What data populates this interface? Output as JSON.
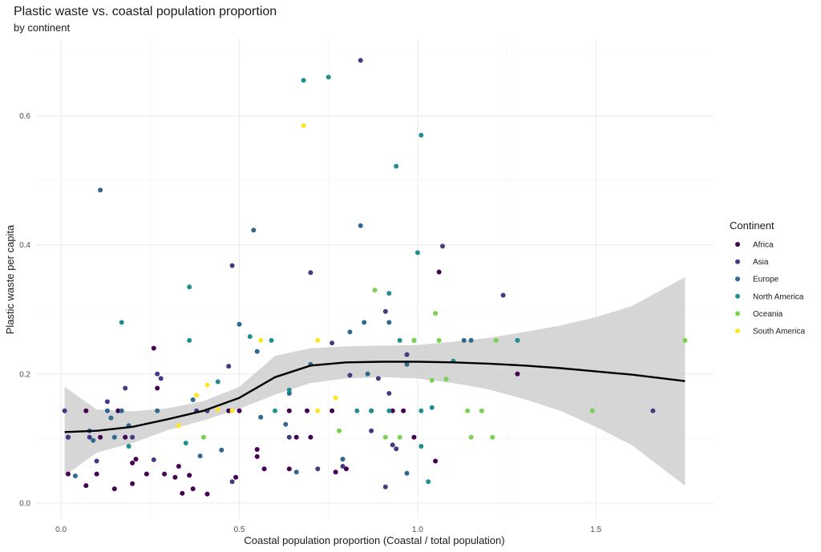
{
  "chart_data": {
    "type": "scatter",
    "title": "Plastic waste vs. coastal population proportion",
    "subtitle": "by continent",
    "xlabel": "Coastal population proportion (Coastal / total population)",
    "ylabel": "Plastic waste per capita",
    "xlim": [
      -0.07,
      1.83
    ],
    "ylim": [
      -0.025,
      0.72
    ],
    "x_ticks": [
      0.0,
      0.5,
      1.0,
      1.5
    ],
    "x_tick_labels": [
      "0.0",
      "0.5",
      "1.0",
      "1.5"
    ],
    "y_ticks": [
      0.0,
      0.2,
      0.4,
      0.6
    ],
    "y_tick_labels": [
      "0.0",
      "0.2",
      "0.4",
      "0.6"
    ],
    "grid": true,
    "legend": {
      "title": "Continent",
      "position": "right"
    },
    "series": [
      {
        "name": "Africa",
        "color": "#440154",
        "points": [
          [
            0.02,
            0.045
          ],
          [
            0.02,
            0.102
          ],
          [
            0.07,
            0.027
          ],
          [
            0.07,
            0.143
          ],
          [
            0.1,
            0.045
          ],
          [
            0.11,
            0.102
          ],
          [
            0.15,
            0.022
          ],
          [
            0.16,
            0.143
          ],
          [
            0.18,
            0.102
          ],
          [
            0.2,
            0.062
          ],
          [
            0.2,
            0.03
          ],
          [
            0.21,
            0.068
          ],
          [
            0.24,
            0.045
          ],
          [
            0.26,
            0.24
          ],
          [
            0.27,
            0.178
          ],
          [
            0.29,
            0.045
          ],
          [
            0.32,
            0.04
          ],
          [
            0.33,
            0.057
          ],
          [
            0.34,
            0.015
          ],
          [
            0.36,
            0.043
          ],
          [
            0.37,
            0.022
          ],
          [
            0.41,
            0.014
          ],
          [
            0.47,
            0.143
          ],
          [
            0.49,
            0.04
          ],
          [
            0.5,
            0.143
          ],
          [
            0.55,
            0.083
          ],
          [
            0.55,
            0.072
          ],
          [
            0.57,
            0.053
          ],
          [
            0.64,
            0.143
          ],
          [
            0.64,
            0.053
          ],
          [
            0.66,
            0.102
          ],
          [
            0.69,
            0.143
          ],
          [
            0.7,
            0.102
          ],
          [
            0.76,
            0.143
          ],
          [
            0.77,
            0.048
          ],
          [
            0.8,
            0.053
          ],
          [
            0.87,
            0.143
          ],
          [
            0.93,
            0.143
          ],
          [
            0.96,
            0.143
          ],
          [
            0.99,
            0.102
          ],
          [
            1.05,
            0.065
          ],
          [
            1.06,
            0.358
          ],
          [
            1.28,
            0.2
          ]
        ]
      },
      {
        "name": "Asia",
        "color": "#443A83",
        "points": [
          [
            0.01,
            0.143
          ],
          [
            0.02,
            0.102
          ],
          [
            0.08,
            0.102
          ],
          [
            0.1,
            0.065
          ],
          [
            0.13,
            0.157
          ],
          [
            0.18,
            0.178
          ],
          [
            0.2,
            0.102
          ],
          [
            0.26,
            0.067
          ],
          [
            0.27,
            0.2
          ],
          [
            0.28,
            0.193
          ],
          [
            0.38,
            0.143
          ],
          [
            0.41,
            0.143
          ],
          [
            0.47,
            0.212
          ],
          [
            0.48,
            0.368
          ],
          [
            0.48,
            0.033
          ],
          [
            0.64,
            0.102
          ],
          [
            0.7,
            0.357
          ],
          [
            0.72,
            0.053
          ],
          [
            0.76,
            0.248
          ],
          [
            0.79,
            0.057
          ],
          [
            0.81,
            0.198
          ],
          [
            0.84,
            0.686
          ],
          [
            0.87,
            0.112
          ],
          [
            0.89,
            0.193
          ],
          [
            0.91,
            0.297
          ],
          [
            0.91,
            0.025
          ],
          [
            0.92,
            0.17
          ],
          [
            0.93,
            0.09
          ],
          [
            0.94,
            0.084
          ],
          [
            0.97,
            0.23
          ],
          [
            1.07,
            0.398
          ],
          [
            1.24,
            0.322
          ],
          [
            1.66,
            0.143
          ]
        ]
      },
      {
        "name": "Europe",
        "color": "#31688E",
        "points": [
          [
            0.04,
            0.042
          ],
          [
            0.08,
            0.112
          ],
          [
            0.09,
            0.097
          ],
          [
            0.11,
            0.485
          ],
          [
            0.13,
            0.143
          ],
          [
            0.14,
            0.132
          ],
          [
            0.15,
            0.102
          ],
          [
            0.17,
            0.143
          ],
          [
            0.19,
            0.12
          ],
          [
            0.27,
            0.143
          ],
          [
            0.37,
            0.16
          ],
          [
            0.39,
            0.073
          ],
          [
            0.45,
            0.082
          ],
          [
            0.5,
            0.277
          ],
          [
            0.54,
            0.423
          ],
          [
            0.55,
            0.235
          ],
          [
            0.56,
            0.133
          ],
          [
            0.63,
            0.122
          ],
          [
            0.64,
            0.17
          ],
          [
            0.66,
            0.048
          ],
          [
            0.7,
            0.215
          ],
          [
            0.79,
            0.068
          ],
          [
            0.81,
            0.265
          ],
          [
            0.84,
            0.43
          ],
          [
            0.85,
            0.28
          ],
          [
            0.86,
            0.2
          ],
          [
            0.92,
            0.28
          ],
          [
            0.97,
            0.215
          ],
          [
            0.97,
            0.046
          ],
          [
            1.13,
            0.252
          ],
          [
            1.15,
            0.252
          ],
          [
            1.28,
            0.252
          ]
        ]
      },
      {
        "name": "North America",
        "color": "#21908C",
        "points": [
          [
            0.17,
            0.28
          ],
          [
            0.19,
            0.088
          ],
          [
            0.35,
            0.093
          ],
          [
            0.36,
            0.335
          ],
          [
            0.36,
            0.252
          ],
          [
            0.44,
            0.188
          ],
          [
            0.53,
            0.258
          ],
          [
            0.59,
            0.252
          ],
          [
            0.6,
            0.143
          ],
          [
            0.64,
            0.175
          ],
          [
            0.68,
            0.655
          ],
          [
            0.75,
            0.66
          ],
          [
            0.83,
            0.143
          ],
          [
            0.87,
            0.143
          ],
          [
            0.92,
            0.325
          ],
          [
            0.92,
            0.143
          ],
          [
            0.94,
            0.522
          ],
          [
            0.95,
            0.252
          ],
          [
            0.99,
            0.252
          ],
          [
            1.0,
            0.388
          ],
          [
            1.01,
            0.088
          ],
          [
            1.01,
            0.57
          ],
          [
            1.01,
            0.143
          ],
          [
            1.03,
            0.033
          ],
          [
            1.04,
            0.148
          ],
          [
            1.1,
            0.22
          ],
          [
            1.28,
            0.252
          ]
        ]
      },
      {
        "name": "Oceania",
        "color": "#7AD151",
        "points": [
          [
            0.4,
            0.102
          ],
          [
            0.78,
            0.112
          ],
          [
            0.88,
            0.33
          ],
          [
            0.91,
            0.102
          ],
          [
            0.95,
            0.102
          ],
          [
            0.99,
            0.252
          ],
          [
            1.04,
            0.19
          ],
          [
            1.05,
            0.294
          ],
          [
            1.06,
            0.252
          ],
          [
            1.08,
            0.192
          ],
          [
            1.14,
            0.143
          ],
          [
            1.15,
            0.102
          ],
          [
            1.18,
            0.143
          ],
          [
            1.21,
            0.102
          ],
          [
            1.22,
            0.252
          ],
          [
            1.49,
            0.143
          ],
          [
            1.75,
            0.252
          ]
        ]
      },
      {
        "name": "South America",
        "color": "#FDE725",
        "points": [
          [
            0.33,
            0.12
          ],
          [
            0.38,
            0.167
          ],
          [
            0.41,
            0.183
          ],
          [
            0.44,
            0.145
          ],
          [
            0.48,
            0.143
          ],
          [
            0.56,
            0.252
          ],
          [
            0.68,
            0.585
          ],
          [
            0.72,
            0.252
          ],
          [
            0.72,
            0.143
          ],
          [
            0.77,
            0.163
          ]
        ]
      }
    ],
    "smooth": {
      "color": "#000000",
      "ribbon_color": "#cccccc",
      "x": [
        0.01,
        0.1,
        0.2,
        0.3,
        0.4,
        0.5,
        0.6,
        0.7,
        0.8,
        0.9,
        1.0,
        1.1,
        1.2,
        1.3,
        1.4,
        1.5,
        1.6,
        1.75
      ],
      "y": [
        0.11,
        0.112,
        0.118,
        0.13,
        0.143,
        0.163,
        0.195,
        0.213,
        0.218,
        0.219,
        0.219,
        0.218,
        0.216,
        0.213,
        0.209,
        0.204,
        0.199,
        0.189
      ],
      "upper": [
        0.18,
        0.145,
        0.142,
        0.147,
        0.158,
        0.18,
        0.228,
        0.24,
        0.243,
        0.244,
        0.245,
        0.25,
        0.256,
        0.265,
        0.275,
        0.288,
        0.305,
        0.35
      ],
      "lower": [
        0.042,
        0.078,
        0.093,
        0.113,
        0.128,
        0.146,
        0.168,
        0.186,
        0.193,
        0.195,
        0.193,
        0.186,
        0.176,
        0.161,
        0.143,
        0.118,
        0.09,
        0.027
      ]
    }
  }
}
